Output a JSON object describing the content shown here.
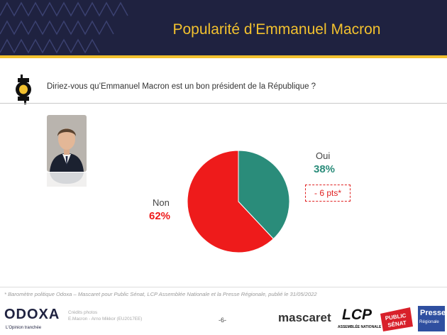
{
  "header": {
    "title": "Popularité d’Emmanuel Macron"
  },
  "question": {
    "text": "Diriez-vous qu’Emmanuel Macron est un bon président de la République ?"
  },
  "chart_data": {
    "type": "pie",
    "categories": [
      "Oui",
      "Non"
    ],
    "values": [
      38,
      62
    ],
    "value_labels": [
      "38%",
      "62%"
    ],
    "colors": [
      "#2a8c7a",
      "#ee1b1b"
    ],
    "annotation": "- 6 pts*"
  },
  "footnote": "* Baromètre politique Odoxa – Mascaret pour Public Sénat, LCP Assemblée Nationale et la Presse Régionale, publié le 31/05/2022",
  "footer": {
    "odoxa": "ODOXA",
    "odoxa_tagline": "L’Opinion tranchée",
    "credits_line1": "Crédits photos",
    "credits_line2": "E.Macron - Arno Mikkor (EU2017EE)",
    "page": "-6-",
    "mascaret": "mascaret",
    "lcp": "LCP",
    "lcp_sub": "ASSEMBLÉE NATIONALE",
    "public_senat_1": "PUBLIC",
    "public_senat_2": "SÉNAT",
    "presse_1": "Presse",
    "presse_2": "Régionale"
  }
}
